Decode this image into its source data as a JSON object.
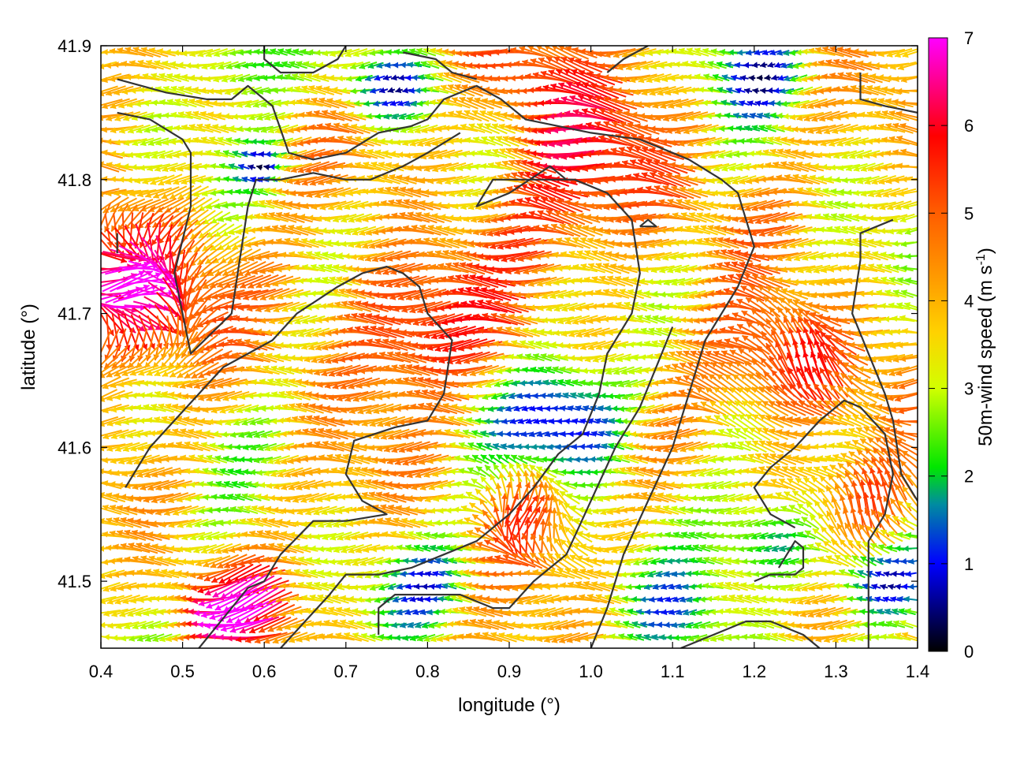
{
  "chart_data": {
    "type": "vector-field",
    "xlabel": "longitude (°)",
    "ylabel": "latitude (°)",
    "xlim": [
      0.4,
      1.4
    ],
    "ylim": [
      41.45,
      41.9
    ],
    "xticks": [
      "0.4",
      "0.5",
      "0.6",
      "0.7",
      "0.8",
      "0.9",
      "1.0",
      "1.1",
      "1.2",
      "1.3",
      "1.4"
    ],
    "yticks": [
      "41.5",
      "41.6",
      "41.7",
      "41.8",
      "41.9"
    ],
    "colorbar": {
      "label": "50m-wind speed (m s-1)",
      "label_main": "50m-wind speed (m s",
      "label_sup": "-1",
      "label_end": ")",
      "range": [
        0,
        7
      ],
      "ticks": [
        "0",
        "1",
        "2",
        "3",
        "4",
        "5",
        "6",
        "7"
      ],
      "palette": [
        "#000000",
        "#0000ff",
        "#008ca0",
        "#00e600",
        "#d2ff00",
        "#ffd200",
        "#ffa000",
        "#ff5a00",
        "#ff0000",
        "#ff00ff"
      ]
    },
    "grid": false,
    "contour_color": "#333333"
  }
}
